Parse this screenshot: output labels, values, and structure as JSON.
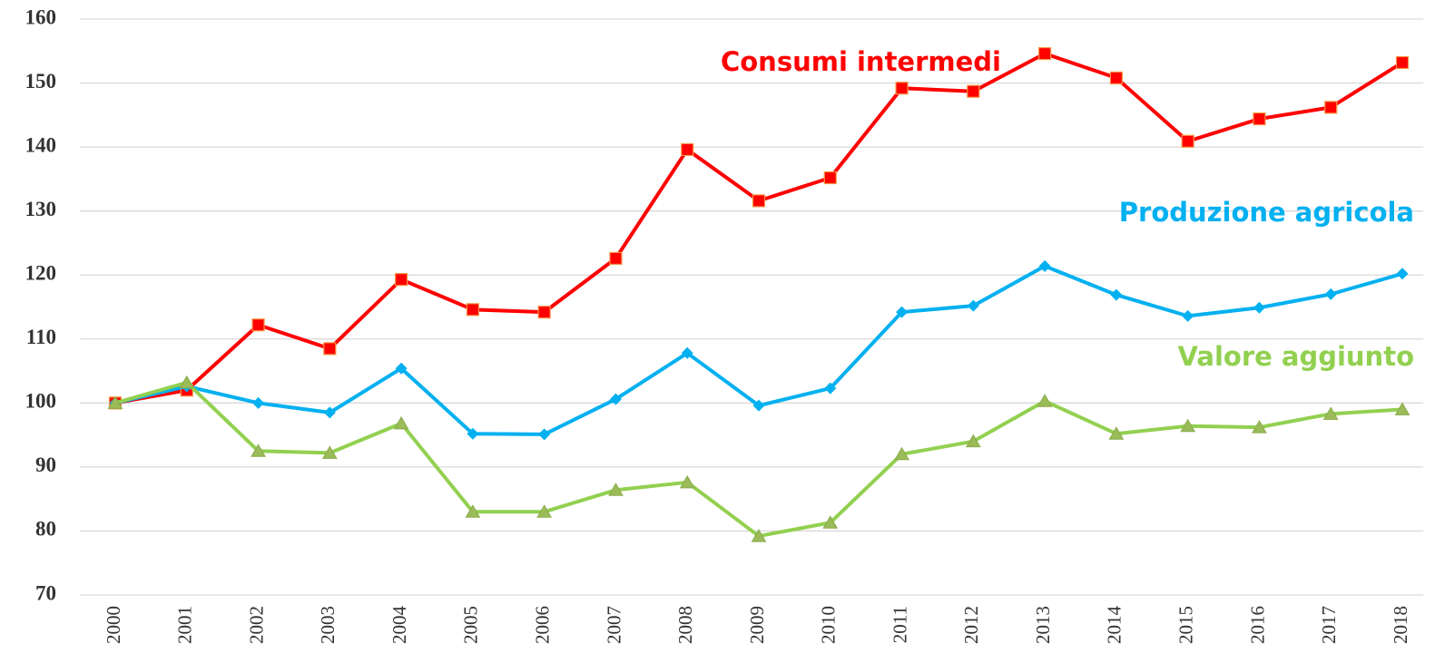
{
  "chart_data": {
    "type": "line",
    "categories": [
      "2000",
      "2001",
      "2002",
      "2003",
      "2004",
      "2005",
      "2006",
      "2007",
      "2008",
      "2009",
      "2010",
      "2011",
      "2012",
      "2013",
      "2014",
      "2015",
      "2016",
      "2017",
      "2018"
    ],
    "series": [
      {
        "name": "Consumi intermedi",
        "color": "#ff0000",
        "marker": "square",
        "values": [
          100,
          102,
          112.2,
          108.5,
          119.3,
          114.6,
          114.2,
          122.6,
          139.6,
          131.6,
          135.2,
          149.2,
          148.7,
          154.6,
          150.8,
          140.9,
          144.4,
          146.2,
          153.2
        ]
      },
      {
        "name": "Produzione agricola",
        "color": "#00b0f0",
        "marker": "diamond",
        "values": [
          100,
          102.6,
          100,
          98.5,
          105.4,
          95.2,
          95.1,
          100.6,
          107.8,
          99.6,
          102.3,
          114.2,
          115.2,
          121.4,
          116.9,
          113.6,
          114.9,
          117,
          120.2
        ]
      },
      {
        "name": "Valore aggiunto",
        "color": "#92d050",
        "marker": "triangle",
        "values": [
          100,
          103.2,
          92.5,
          92.2,
          96.8,
          83,
          83,
          86.4,
          87.6,
          79.2,
          81.3,
          92,
          94,
          100.3,
          95.2,
          96.4,
          96.2,
          98.3,
          99
        ]
      }
    ],
    "ylim": [
      70,
      160
    ],
    "yticks": [
      70,
      80,
      90,
      100,
      110,
      120,
      130,
      140,
      150,
      160
    ],
    "grid": true
  }
}
